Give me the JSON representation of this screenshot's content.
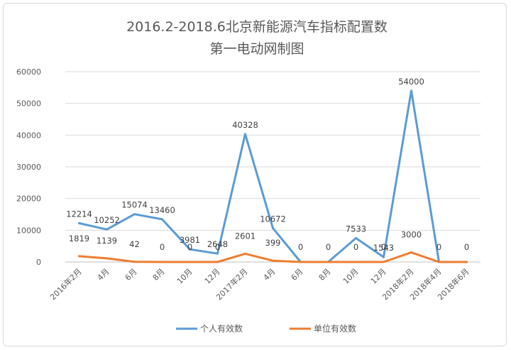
{
  "chart_data": {
    "type": "line",
    "title_lines": [
      "2016.2-2018.6北京新能源汽车指标配置数",
      "第一电动网制图"
    ],
    "categories": [
      "2016年2月",
      "4月",
      "6月",
      "8月",
      "10月",
      "12月",
      "2017年2月",
      "4月",
      "6月",
      "8月",
      "10月",
      "12月",
      "2018年2月",
      "2018年4月",
      "2018年6月"
    ],
    "series": [
      {
        "name": "个人有效数",
        "color": "#5b9bd5",
        "values": [
          12214,
          10252,
          15074,
          13460,
          3981,
          2648,
          40328,
          10672,
          0,
          0,
          7533,
          1543,
          54000,
          0,
          0
        ],
        "labels": [
          "12214",
          "10252",
          "15074",
          "13460",
          "3981",
          "2648",
          "40328",
          "10672",
          "0",
          "0",
          "7533",
          "1543",
          "54000",
          "0",
          "0"
        ]
      },
      {
        "name": "单位有效数",
        "color": "#ed7d31",
        "values": [
          1819,
          1139,
          42,
          0,
          0,
          0,
          2601,
          399,
          0,
          0,
          0,
          0,
          3000,
          0,
          0
        ],
        "labels": [
          "1819",
          "1139",
          "42",
          "0",
          "0",
          "0",
          "2601",
          "399",
          "0",
          "0",
          "0",
          "0",
          "3000",
          "0",
          "0"
        ]
      }
    ],
    "ylim": [
      0,
      60000
    ],
    "yticks": [
      "0",
      "10000",
      "20000",
      "30000",
      "40000",
      "50000",
      "60000"
    ],
    "grid": true,
    "legend_position": "bottom"
  }
}
